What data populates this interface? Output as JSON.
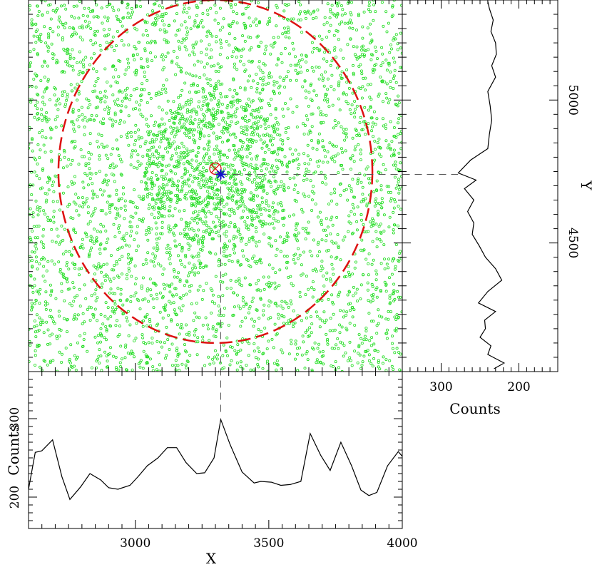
{
  "chart_data": [
    {
      "type": "scatter",
      "panel": "main",
      "xlim": [
        2600,
        4000
      ],
      "ylim": [
        4050,
        5350
      ],
      "point_color": "#22dd22",
      "circle": {
        "center": [
          3300,
          4750
        ],
        "radius": 600,
        "color": "#dd1111",
        "style": "dashed"
      },
      "marker_circle": {
        "x": 3300,
        "y": 4760,
        "color": "#dd1111"
      },
      "marker_cross": {
        "x": 3320,
        "y": 4740,
        "color": "#1111cc"
      },
      "crosshair": {
        "x": 3320,
        "y": 4740,
        "color": "#555555"
      }
    },
    {
      "type": "line",
      "panel": "bottom-histogram",
      "xlabel": "X",
      "ylabel": "Counts",
      "xlim": [
        2600,
        4000
      ],
      "ylim": [
        160,
        360
      ],
      "xticks": [
        3000,
        3500,
        4000
      ],
      "yticks": [
        200,
        300
      ],
      "x": [
        2600,
        2625,
        2650,
        2690,
        2725,
        2755,
        2795,
        2830,
        2870,
        2900,
        2935,
        2980,
        3010,
        3045,
        3085,
        3120,
        3155,
        3190,
        3230,
        3260,
        3295,
        3320,
        3355,
        3400,
        3445,
        3470,
        3510,
        3545,
        3580,
        3620,
        3655,
        3695,
        3730,
        3770,
        3810,
        3845,
        3875,
        3905,
        3945,
        3985,
        4000
      ],
      "values": [
        210,
        257,
        259,
        273,
        226,
        197,
        213,
        230,
        222,
        212,
        210,
        215,
        226,
        240,
        250,
        263,
        263,
        244,
        230,
        231,
        250,
        299,
        267,
        232,
        218,
        220,
        219,
        215,
        216,
        220,
        281,
        253,
        234,
        270,
        240,
        209,
        202,
        206,
        240,
        258,
        252
      ]
    },
    {
      "type": "line",
      "panel": "right-histogram",
      "xlabel": "Counts",
      "ylabel": "Y",
      "xlim": [
        350,
        150
      ],
      "ylim": [
        4050,
        5350
      ],
      "xticks": [
        300,
        200
      ],
      "yticks": [
        4500,
        5000
      ],
      "y": [
        4060,
        4080,
        4110,
        4140,
        4170,
        4200,
        4230,
        4260,
        4290,
        4330,
        4370,
        4410,
        4450,
        4490,
        4530,
        4570,
        4610,
        4650,
        4690,
        4720,
        4745,
        4790,
        4830,
        4880,
        4930,
        4980,
        5030,
        5080,
        5120,
        5160,
        5200,
        5240,
        5280,
        5320,
        5345
      ],
      "values": [
        232,
        219,
        240,
        236,
        250,
        243,
        244,
        230,
        252,
        240,
        222,
        230,
        243,
        251,
        260,
        258,
        266,
        258,
        270,
        255,
        278,
        262,
        240,
        238,
        235,
        237,
        240,
        230,
        235,
        229,
        230,
        236,
        233,
        238,
        240
      ]
    }
  ]
}
